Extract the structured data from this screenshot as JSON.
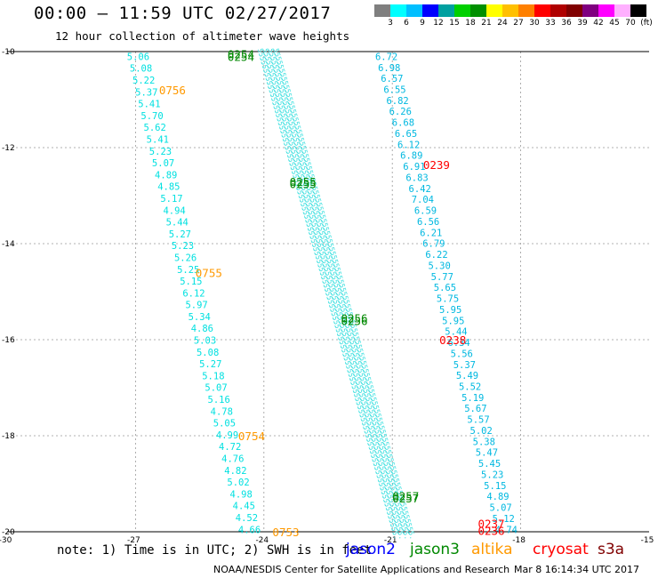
{
  "header": {
    "title": "00:00 – 11:59 UTC 02/27/2017",
    "subtitle": "12 hour collection of altimeter wave heights"
  },
  "colorbar": {
    "colors": [
      "#7f7f7f",
      "#00ffff",
      "#00bfff",
      "#0000ff",
      "#00a0a0",
      "#00d000",
      "#009000",
      "#ffff00",
      "#ffc000",
      "#ff8000",
      "#ff0000",
      "#b00000",
      "#800000",
      "#800080",
      "#ff00ff",
      "#ffb0ff",
      "#000000"
    ],
    "labels": [
      "3",
      "6",
      "9",
      "12",
      "15",
      "18",
      "21",
      "24",
      "27",
      "30",
      "33",
      "36",
      "39",
      "42",
      "45",
      "70",
      "(ft)"
    ]
  },
  "chart_data": {
    "type": "scatter",
    "title": "12 hour collection of altimeter wave heights",
    "xlim": [
      -30,
      -15
    ],
    "ylim": [
      -20,
      -10
    ],
    "x_ticks": [
      "-30",
      "-27",
      "-24",
      "-21",
      "-18",
      "-15"
    ],
    "y_ticks": [
      "-10",
      "-12",
      "-14",
      "-16",
      "-18",
      "-20"
    ],
    "tracks": [
      {
        "name": "left",
        "color": "#00e0e0",
        "lon_start": -27.2,
        "lat_start": -10.1,
        "lon_end": -24.6,
        "lat_end": -19.95,
        "values": [
          "5.06",
          "5.08",
          "5.22",
          "5.37",
          "5.41",
          "5.70",
          "5.62",
          "5.41",
          "5.23",
          "5.07",
          "4.89",
          "4.85",
          "5.17",
          "4.94",
          "5.44",
          "5.27",
          "5.23",
          "5.26",
          "5.25",
          "5.15",
          "6.12",
          "5.97",
          "5.34",
          "4.86",
          "5.03",
          "5.08",
          "5.27",
          "5.18",
          "5.07",
          "5.16",
          "4.78",
          "5.05",
          "4.99",
          "4.72",
          "4.76",
          "4.82",
          "5.02",
          "4.98",
          "4.45",
          "4.52",
          "4.66"
        ]
      },
      {
        "name": "right",
        "color": "#00b8e0",
        "lon_start": -21.4,
        "lat_start": -10.1,
        "lon_end": -18.6,
        "lat_end": -19.95,
        "values": [
          "6.72",
          "6.98",
          "6.57",
          "6.55",
          "6.82",
          "6.26",
          "6.68",
          "6.65",
          "6.12",
          "6.89",
          "6.91",
          "6.83",
          "6.42",
          "7.04",
          "6.59",
          "6.56",
          "6.21",
          "6.79",
          "6.22",
          "5.30",
          "5.77",
          "5.65",
          "5.75",
          "5.95",
          "5.95",
          "5.44",
          "6.34",
          "5.56",
          "5.37",
          "5.49",
          "5.52",
          "5.19",
          "5.67",
          "5.57",
          "5.02",
          "5.38",
          "5.47",
          "5.45",
          "5.23",
          "5.15",
          "4.89",
          "5.07",
          "5.12",
          "4.74"
        ]
      }
    ],
    "time_labels": [
      {
        "text": "0756",
        "color": "#ff9900",
        "lon": -26.45,
        "lat": -10.8
      },
      {
        "text": "0755",
        "color": "#ff9900",
        "lon": -25.6,
        "lat": -14.6
      },
      {
        "text": "0754",
        "color": "#ff9900",
        "lon": -24.6,
        "lat": -18.0
      },
      {
        "text": "0753",
        "color": "#ff9900",
        "lon": -23.8,
        "lat": -20.0
      },
      {
        "text": "0254",
        "color": "#008800",
        "lon": -24.85,
        "lat": -10.05
      },
      {
        "text": "0254",
        "color": "#008800",
        "lon": -24.85,
        "lat": -10.1
      },
      {
        "text": "0255",
        "color": "#008800",
        "lon": -23.4,
        "lat": -12.7
      },
      {
        "text": "0255",
        "color": "#008800",
        "lon": -23.4,
        "lat": -12.75
      },
      {
        "text": "0256",
        "color": "#008800",
        "lon": -22.2,
        "lat": -15.55
      },
      {
        "text": "0256",
        "color": "#008800",
        "lon": -22.2,
        "lat": -15.6
      },
      {
        "text": "0257",
        "color": "#008800",
        "lon": -21.0,
        "lat": -19.25
      },
      {
        "text": "0257",
        "color": "#008800",
        "lon": -21.0,
        "lat": -19.3
      },
      {
        "text": "0239",
        "color": "#ff0000",
        "lon": -20.28,
        "lat": -12.35
      },
      {
        "text": "0238",
        "color": "#ff0000",
        "lon": -19.9,
        "lat": -16.0
      },
      {
        "text": "0237",
        "color": "#ff0000",
        "lon": -19.0,
        "lat": -19.82
      },
      {
        "text": "0236",
        "color": "#ff0000",
        "lon": -19.0,
        "lat": -19.97
      }
    ]
  },
  "note": "note: 1) Time is in UTC; 2) SWH is in feet",
  "legend": [
    {
      "label": "jason2",
      "color": "#0000ff"
    },
    {
      "label": "jason3",
      "color": "#008800"
    },
    {
      "label": "altika",
      "color": "#ff9900"
    },
    {
      "label": "cryosat",
      "color": "#ff0000"
    },
    {
      "label": "s3a",
      "color": "#800000"
    }
  ],
  "footer": {
    "credit": "NOAA/NESDIS Center for Satellite Applications and Research",
    "timestamp": "Mar  8 16:14:34 UTC 2017"
  }
}
